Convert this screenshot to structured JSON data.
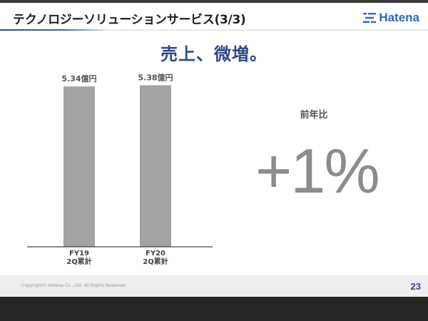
{
  "header": {
    "title": "テクノロジーソリューションサービス(3/3)",
    "logo_text": "Hatena",
    "logo_icon": "hatena-logo-icon"
  },
  "headline": "売上、微増。",
  "yoy": {
    "label": "前年比",
    "value": "+1%"
  },
  "footer": {
    "copyright": "Copyright© Hatena Co., Ltd.   All Rights Reserved.",
    "page_number": "23"
  },
  "colors": {
    "accent": "#2d4a86",
    "bar": "#a3a3a3",
    "logo": "#2f66c8"
  },
  "chart_data": {
    "type": "bar",
    "categories": [
      [
        "FY19",
        "2Q累計"
      ],
      [
        "FY20",
        "2Q累計"
      ]
    ],
    "values": [
      5.34,
      5.38
    ],
    "value_labels": [
      "5.34億円",
      "5.38億円"
    ],
    "ylim": [
      0,
      6.2
    ],
    "grid": false,
    "legend": "none"
  }
}
